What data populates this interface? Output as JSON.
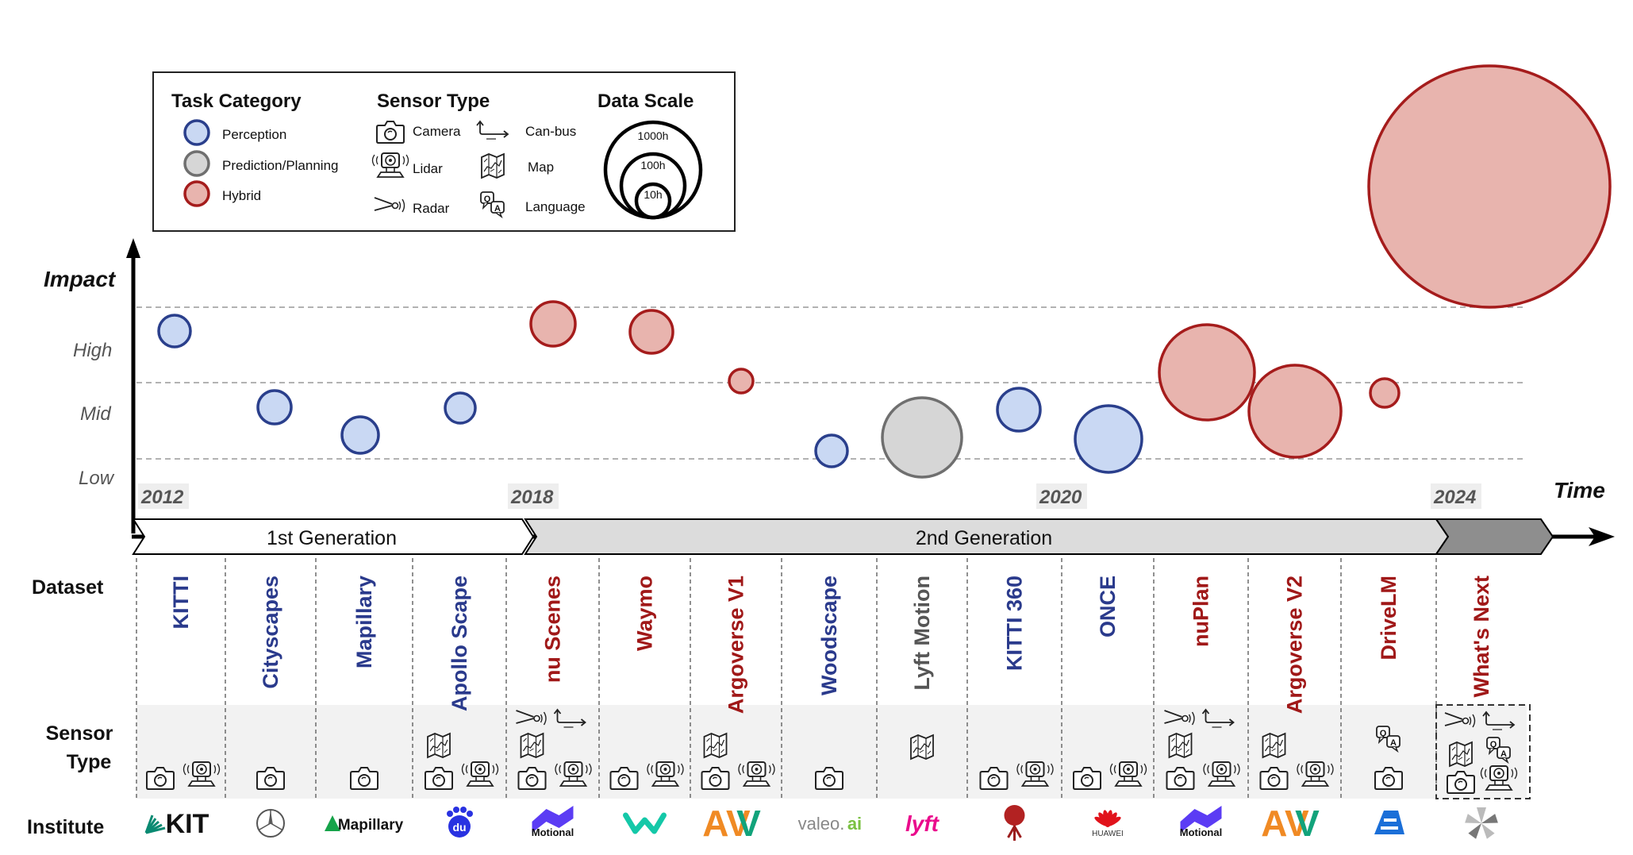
{
  "legend": {
    "task_category": {
      "title": "Task Category",
      "items": [
        {
          "label": "Perception",
          "kind": "perception"
        },
        {
          "label": "Prediction/Planning",
          "kind": "planning"
        },
        {
          "label": "Hybrid",
          "kind": "hybrid"
        }
      ]
    },
    "sensor_type": {
      "title": "Sensor Type",
      "items": [
        {
          "label": "Camera",
          "icon": "camera-icon"
        },
        {
          "label": "Lidar",
          "icon": "lidar-icon"
        },
        {
          "label": "Radar",
          "icon": "radar-icon"
        },
        {
          "label": "Can-bus",
          "icon": "canbus-icon"
        },
        {
          "label": "Map",
          "icon": "map-icon"
        },
        {
          "label": "Language",
          "icon": "language-icon"
        }
      ]
    },
    "data_scale": {
      "title": "Data Scale",
      "items": [
        {
          "label": "1000h",
          "hours": 1000
        },
        {
          "label": "100h",
          "hours": 100
        },
        {
          "label": "10h",
          "hours": 10
        }
      ]
    }
  },
  "axes": {
    "y_title": "Impact",
    "y_levels": [
      "High",
      "Mid",
      "Low"
    ],
    "x_title": "Time",
    "years": [
      "2012",
      "2018",
      "2020",
      "2024"
    ]
  },
  "generations": [
    "1st Generation",
    "2nd Generation"
  ],
  "row_labels": {
    "dataset": "Dataset",
    "sensor": "Sensor Type",
    "institute": "Institute"
  },
  "colors": {
    "perception_fill": "#c9d8f3",
    "perception_stroke": "#2a3f8c",
    "planning_fill": "#d6d6d6",
    "planning_stroke": "#6f6f6f",
    "hybrid_fill": "#e8b4ae",
    "hybrid_stroke": "#a51c1c"
  },
  "datasets": [
    {
      "name": "KITTI",
      "kind": "perception",
      "impact": "High",
      "sensors": [
        "camera",
        "lidar"
      ],
      "institute": "KIT"
    },
    {
      "name": "Cityscapes",
      "kind": "perception",
      "impact": "Mid",
      "sensors": [
        "camera"
      ],
      "institute": "Mercedes-Benz"
    },
    {
      "name": "Mapillary",
      "kind": "perception",
      "impact": "Mid",
      "sensors": [
        "camera"
      ],
      "institute": "Mapillary"
    },
    {
      "name": "Apollo Scape",
      "kind": "perception",
      "impact": "Mid",
      "sensors": [
        "map",
        "camera",
        "lidar"
      ],
      "institute": "Baidu"
    },
    {
      "name": "nu Scenes",
      "kind": "hybrid",
      "impact": "High",
      "sensors": [
        "radar",
        "canbus",
        "map",
        "camera",
        "lidar"
      ],
      "institute": "Motional"
    },
    {
      "name": "Waymo",
      "kind": "hybrid",
      "impact": "High",
      "sensors": [
        "camera",
        "lidar"
      ],
      "institute": "Waymo"
    },
    {
      "name": "Argoverse V1",
      "kind": "hybrid",
      "impact": "Mid",
      "sensors": [
        "map",
        "camera",
        "lidar"
      ],
      "institute": "Argo AI"
    },
    {
      "name": "Woodscape",
      "kind": "perception",
      "impact": "Low",
      "sensors": [
        "camera"
      ],
      "institute": "valeo.ai"
    },
    {
      "name": "Lyft Motion",
      "kind": "planning",
      "impact": "Low",
      "sensors": [
        "map"
      ],
      "institute": "Lyft"
    },
    {
      "name": "KITTI 360",
      "kind": "perception",
      "impact": "Mid",
      "sensors": [
        "camera",
        "lidar"
      ],
      "institute": "Tübingen"
    },
    {
      "name": "ONCE",
      "kind": "perception",
      "impact": "Low",
      "sensors": [
        "camera",
        "lidar"
      ],
      "institute": "HUAWEI"
    },
    {
      "name": "nuPlan",
      "kind": "hybrid",
      "impact": "Mid",
      "sensors": [
        "radar",
        "canbus",
        "map",
        "camera",
        "lidar"
      ],
      "institute": "Motional"
    },
    {
      "name": "Argoverse V2",
      "kind": "hybrid",
      "impact": "Mid",
      "sensors": [
        "map",
        "camera",
        "lidar"
      ],
      "institute": "Argo AI"
    },
    {
      "name": "DriveLM",
      "kind": "hybrid",
      "impact": "Mid",
      "sensors": [
        "language",
        "camera"
      ],
      "institute": "OpenDriveLab"
    },
    {
      "name": "What's Next",
      "kind": "hybrid",
      "impact": "",
      "sensors": [
        "radar",
        "canbus",
        "map",
        "language",
        "camera",
        "lidar"
      ],
      "institute": "Next"
    }
  ],
  "institute_texts": {
    "kit": "KIT",
    "mapillary": "Mapillary",
    "baidu": "du",
    "motional": "Motional",
    "argo": "AV",
    "valeo_a": "valeo.",
    "valeo_b": "ai",
    "lyft": "lyft",
    "huawei": "HUAWEI",
    "lang_q": "Q",
    "lang_a": "A"
  }
}
